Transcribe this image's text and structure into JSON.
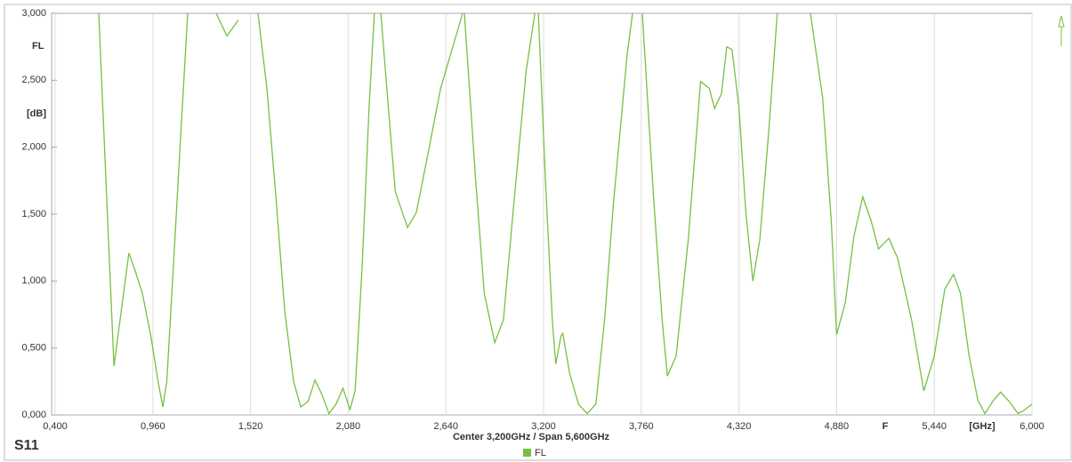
{
  "chart_data": {
    "type": "line",
    "chart_label": "S11",
    "x_axis_label": "F",
    "x_unit": "[GHz]",
    "y_unit": "[dB]",
    "footer": "Center 3,200GHz / Span 5,600GHz",
    "grid": true,
    "xlim": [
      0.4,
      6.0
    ],
    "xticks": [
      {
        "value": 0.4,
        "label": "0,400"
      },
      {
        "value": 0.96,
        "label": "0,960"
      },
      {
        "value": 1.52,
        "label": "1,520"
      },
      {
        "value": 2.08,
        "label": "2,080"
      },
      {
        "value": 2.64,
        "label": "2,640"
      },
      {
        "value": 3.2,
        "label": "3,200"
      },
      {
        "value": 3.76,
        "label": "3,760"
      },
      {
        "value": 4.32,
        "label": "4,320"
      },
      {
        "value": 4.88,
        "label": "4,880"
      },
      {
        "value": 5.44,
        "label": "5,440"
      },
      {
        "value": 6.0,
        "label": "6,000"
      }
    ],
    "ylim": [
      0,
      3
    ],
    "yticks": [
      {
        "value": 0,
        "label": "0,000"
      },
      {
        "value": 0.5,
        "label": "0,500"
      },
      {
        "value": 1,
        "label": "1,000"
      },
      {
        "value": 1.5,
        "label": "1,500"
      },
      {
        "value": 2,
        "label": "2,000"
      },
      {
        "value": 2.5,
        "label": "2,500"
      },
      {
        "value": 3,
        "label": "3,000"
      }
    ],
    "x": [
      0.65,
      0.737,
      0.823,
      0.859,
      0.9,
      0.95,
      0.99,
      1.017,
      1.04,
      1.078,
      1.12,
      1.16,
      1.24,
      1.323,
      1.385,
      1.45,
      1.5,
      1.563,
      1.614,
      1.665,
      1.716,
      1.767,
      1.808,
      1.85,
      1.89,
      1.93,
      1.97,
      2.01,
      2.05,
      2.09,
      2.12,
      2.16,
      2.2,
      2.23,
      2.25,
      2.267,
      2.31,
      2.35,
      2.42,
      2.47,
      2.53,
      2.61,
      2.736,
      2.74,
      2.746,
      2.81,
      2.86,
      2.92,
      2.97,
      3.02,
      3.1,
      3.15,
      3.16,
      3.17,
      3.21,
      3.25,
      3.27,
      3.3,
      3.31,
      3.35,
      3.4,
      3.45,
      3.5,
      3.55,
      3.6,
      3.68,
      3.71,
      3.74,
      3.766,
      3.83,
      3.88,
      3.91,
      3.96,
      4.03,
      4.1,
      4.15,
      4.18,
      4.22,
      4.25,
      4.28,
      4.32,
      4.36,
      4.4,
      4.44,
      4.49,
      4.54,
      4.63,
      4.73,
      4.8,
      4.85,
      4.88,
      4.93,
      4.98,
      5.03,
      5.08,
      5.12,
      5.18,
      5.23,
      5.31,
      5.38,
      5.44,
      5.5,
      5.55,
      5.59,
      5.64,
      5.69,
      5.73,
      5.78,
      5.82,
      5.87,
      5.92,
      5.95,
      6.0
    ],
    "series": [
      {
        "name": "FL",
        "color": "#76c043",
        "values": [
          3.0,
          0.365,
          1.21,
          1.075,
          0.91,
          0.58,
          0.25,
          0.06,
          0.25,
          1.11,
          2.1,
          3.0,
          null,
          3.0,
          2.83,
          2.95,
          null,
          3.0,
          2.44,
          1.64,
          0.78,
          0.25,
          0.06,
          0.1,
          0.26,
          0.15,
          0.01,
          0.08,
          0.2,
          0.04,
          0.18,
          1.11,
          2.3,
          3.0,
          null,
          3.0,
          2.3,
          1.67,
          1.4,
          1.51,
          1.9,
          2.44,
          3.0,
          null,
          3.0,
          1.77,
          0.91,
          0.54,
          0.71,
          1.44,
          2.57,
          3.0,
          null,
          3.0,
          1.77,
          0.71,
          0.38,
          0.59,
          0.61,
          0.31,
          0.08,
          0.01,
          0.08,
          0.71,
          1.57,
          2.7,
          3.0,
          null,
          3.0,
          1.64,
          0.71,
          0.29,
          0.44,
          1.31,
          2.49,
          2.44,
          2.29,
          2.4,
          2.75,
          2.73,
          2.3,
          1.51,
          1.0,
          1.31,
          2.1,
          3.0,
          null,
          3.0,
          2.37,
          1.44,
          0.6,
          0.84,
          1.34,
          1.63,
          1.44,
          1.24,
          1.32,
          1.17,
          0.71,
          0.18,
          0.44,
          0.94,
          1.05,
          0.91,
          0.44,
          0.11,
          0.01,
          0.11,
          0.17,
          0.1,
          0.01,
          0.03,
          0.08
        ]
      }
    ]
  }
}
